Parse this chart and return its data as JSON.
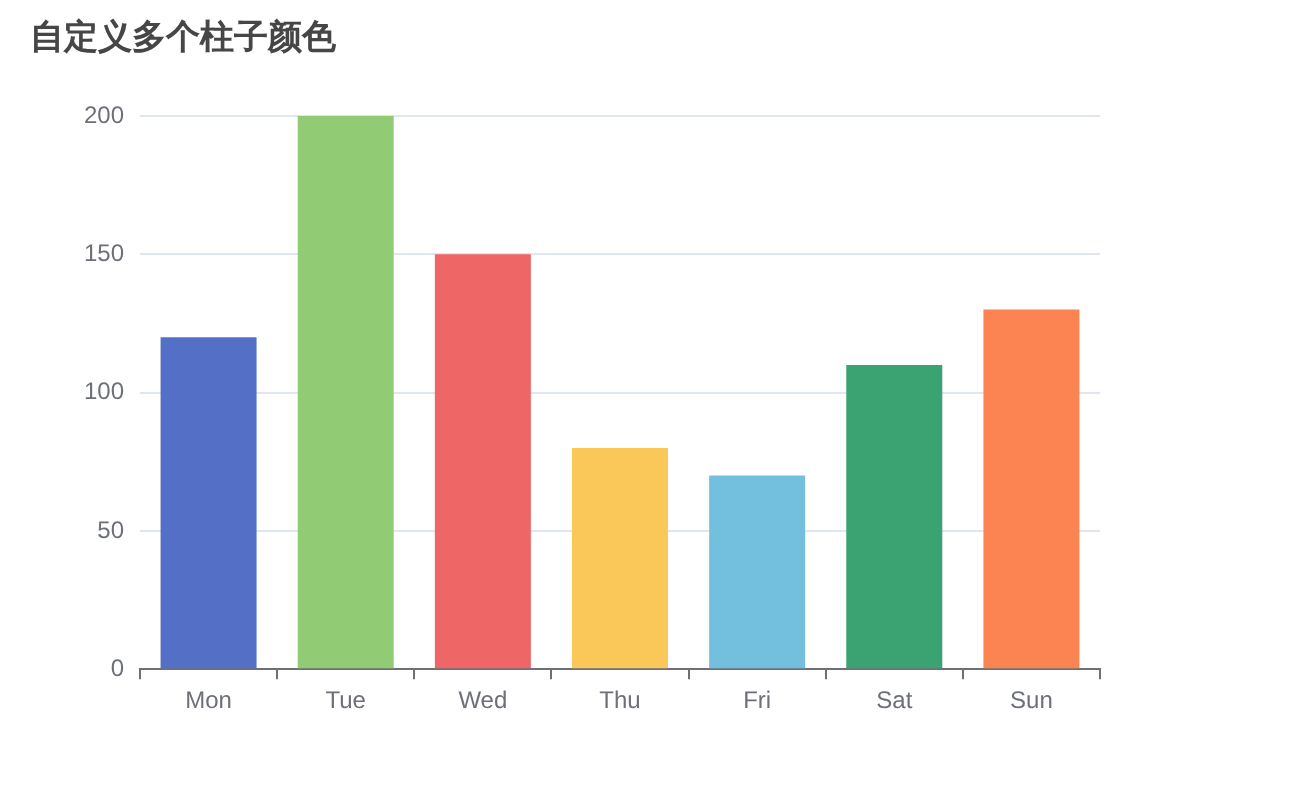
{
  "chart_data": {
    "type": "bar",
    "title": "自定义多个柱子颜色",
    "categories": [
      "Mon",
      "Tue",
      "Wed",
      "Thu",
      "Fri",
      "Sat",
      "Sun"
    ],
    "values": [
      120,
      200,
      150,
      80,
      70,
      110,
      130
    ],
    "colors": [
      "#5470c6",
      "#91cc75",
      "#ee6666",
      "#fac858",
      "#73c0de",
      "#3ba272",
      "#fc8452"
    ],
    "ylim": [
      0,
      200
    ],
    "yticks": [
      0,
      50,
      100,
      150,
      200
    ],
    "grid": "y",
    "legend": false
  }
}
